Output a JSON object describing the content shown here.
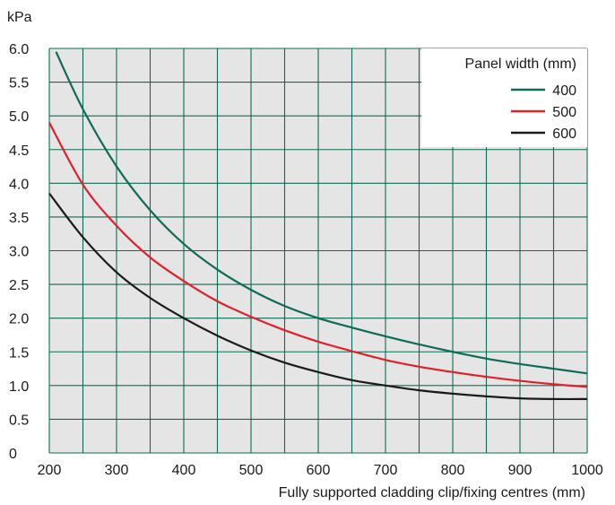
{
  "chart_data": {
    "type": "line",
    "title": "",
    "xlabel": "Fully supported cladding clip/fixing centres (mm)",
    "ylabel": "kPa",
    "xlim": [
      200,
      1000
    ],
    "ylim": [
      0,
      6.0
    ],
    "x_ticks": [
      200,
      300,
      400,
      500,
      600,
      700,
      800,
      900,
      1000
    ],
    "x_tick_labels": [
      "200",
      "300",
      "400",
      "500",
      "600",
      "700",
      "800",
      "900",
      "1000"
    ],
    "y_ticks": [
      0,
      0.5,
      1.0,
      1.5,
      2.0,
      2.5,
      3.0,
      3.5,
      4.0,
      4.5,
      5.0,
      5.5,
      6.0
    ],
    "y_tick_labels": [
      "0",
      "0.5",
      "1.0",
      "1.5",
      "2.0",
      "2.5",
      "3.0",
      "3.5",
      "4.0",
      "4.5",
      "5.0",
      "5.5",
      "6.0"
    ],
    "x_grid_step": 50,
    "y_grid_step": 0.5,
    "grid": true,
    "legend": {
      "title": "Panel width (mm)",
      "placement": "top-right"
    },
    "series": [
      {
        "name": "400",
        "color": "#0d6b58",
        "x": [
          210,
          250,
          300,
          350,
          400,
          450,
          500,
          550,
          600,
          650,
          700,
          750,
          800,
          850,
          900,
          950,
          1000
        ],
        "y": [
          5.95,
          5.1,
          4.25,
          3.6,
          3.1,
          2.72,
          2.42,
          2.18,
          2.0,
          1.86,
          1.73,
          1.61,
          1.5,
          1.4,
          1.32,
          1.25,
          1.18
        ]
      },
      {
        "name": "500",
        "color": "#e0202a",
        "x": [
          200,
          250,
          300,
          350,
          400,
          450,
          500,
          550,
          600,
          650,
          700,
          750,
          800,
          850,
          900,
          950,
          1000
        ],
        "y": [
          4.9,
          3.98,
          3.37,
          2.9,
          2.55,
          2.25,
          2.02,
          1.82,
          1.65,
          1.51,
          1.38,
          1.28,
          1.2,
          1.13,
          1.07,
          1.02,
          0.98
        ]
      },
      {
        "name": "600",
        "color": "#1a1a1a",
        "x": [
          200,
          250,
          300,
          350,
          400,
          450,
          500,
          550,
          600,
          650,
          700,
          750,
          800,
          850,
          900,
          950,
          1000
        ],
        "y": [
          3.85,
          3.2,
          2.68,
          2.3,
          2.0,
          1.74,
          1.52,
          1.34,
          1.2,
          1.08,
          1.0,
          0.93,
          0.88,
          0.84,
          0.81,
          0.8,
          0.8
        ]
      }
    ]
  },
  "colors": {
    "plot_background": "#e5e5e5",
    "grid_line": "#0f6b55",
    "legend_background": "#ffffff"
  }
}
